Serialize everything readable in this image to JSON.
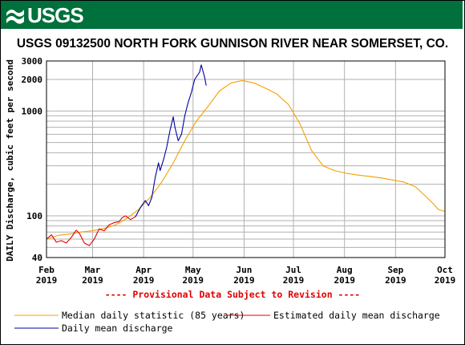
{
  "header": {
    "agency": "USGS"
  },
  "chart_data": {
    "type": "line",
    "title": "USGS 09132500 NORTH FORK GUNNISON RIVER NEAR SOMERSET, CO.",
    "ylabel": "DAILY Discharge, cubic feet per second",
    "xlabel": "",
    "yscale": "log",
    "ylim": [
      40,
      3000
    ],
    "ytick_labels": [
      "40",
      "100",
      "1000",
      "2000",
      "3000"
    ],
    "x_ticks": [
      {
        "date": "2019-02-01",
        "month": "Feb",
        "year": "2019"
      },
      {
        "date": "2019-03-01",
        "month": "Mar",
        "year": "2019"
      },
      {
        "date": "2019-04-01",
        "month": "Apr",
        "year": "2019"
      },
      {
        "date": "2019-05-01",
        "month": "May",
        "year": "2019"
      },
      {
        "date": "2019-06-01",
        "month": "Jun",
        "year": "2019"
      },
      {
        "date": "2019-07-01",
        "month": "Jul",
        "year": "2019"
      },
      {
        "date": "2019-08-01",
        "month": "Aug",
        "year": "2019"
      },
      {
        "date": "2019-09-01",
        "month": "Sep",
        "year": "2019"
      },
      {
        "date": "2019-10-01",
        "month": "Oct",
        "year": "2019"
      }
    ],
    "xlim": [
      "2019-02-01",
      "2019-10-01"
    ],
    "grid": true,
    "annotation": "---- Provisional Data Subject to Revision ----",
    "legend_position": "bottom",
    "colors": {
      "median": "#f5a000",
      "estimated": "#e00000",
      "daily": "#0000a0",
      "grid": "#b0b0b0",
      "banner": "#00703c"
    },
    "series": [
      {
        "name": "Median daily statistic (85 years)",
        "color": "#f5a000",
        "points": [
          [
            "2019-02-01",
            60
          ],
          [
            "2019-02-08",
            65
          ],
          [
            "2019-02-15",
            67
          ],
          [
            "2019-02-22",
            70
          ],
          [
            "2019-03-01",
            72
          ],
          [
            "2019-03-08",
            76
          ],
          [
            "2019-03-15",
            82
          ],
          [
            "2019-03-22",
            95
          ],
          [
            "2019-03-29",
            115
          ],
          [
            "2019-04-05",
            150
          ],
          [
            "2019-04-12",
            210
          ],
          [
            "2019-04-19",
            320
          ],
          [
            "2019-04-26",
            520
          ],
          [
            "2019-05-03",
            800
          ],
          [
            "2019-05-10",
            1100
          ],
          [
            "2019-05-17",
            1550
          ],
          [
            "2019-05-24",
            1850
          ],
          [
            "2019-05-31",
            1950
          ],
          [
            "2019-06-07",
            1850
          ],
          [
            "2019-06-14",
            1650
          ],
          [
            "2019-06-21",
            1450
          ],
          [
            "2019-06-28",
            1150
          ],
          [
            "2019-07-05",
            750
          ],
          [
            "2019-07-12",
            420
          ],
          [
            "2019-07-19",
            300
          ],
          [
            "2019-07-26",
            270
          ],
          [
            "2019-08-02",
            255
          ],
          [
            "2019-08-09",
            245
          ],
          [
            "2019-08-16",
            238
          ],
          [
            "2019-08-23",
            230
          ],
          [
            "2019-08-30",
            220
          ],
          [
            "2019-09-06",
            210
          ],
          [
            "2019-09-13",
            190
          ],
          [
            "2019-09-20",
            150
          ],
          [
            "2019-09-24",
            130
          ],
          [
            "2019-09-27",
            115
          ],
          [
            "2019-10-01",
            110
          ]
        ]
      },
      {
        "name": "Estimated daily mean discharge",
        "color": "#e00000",
        "points": [
          [
            "2019-02-01",
            60
          ],
          [
            "2019-02-04",
            66
          ],
          [
            "2019-02-07",
            56
          ],
          [
            "2019-02-10",
            58
          ],
          [
            "2019-02-13",
            55
          ],
          [
            "2019-02-16",
            62
          ],
          [
            "2019-02-19",
            73
          ],
          [
            "2019-02-21",
            68
          ],
          [
            "2019-02-24",
            55
          ],
          [
            "2019-02-27",
            52
          ],
          [
            "2019-03-02",
            60
          ],
          [
            "2019-03-05",
            75
          ],
          [
            "2019-03-08",
            72
          ],
          [
            "2019-03-11",
            82
          ],
          [
            "2019-03-14",
            86
          ],
          [
            "2019-03-17",
            88
          ],
          [
            "2019-03-19",
            96
          ],
          [
            "2019-03-21",
            100
          ],
          [
            "2019-03-24",
            92
          ],
          [
            "2019-03-27",
            98
          ]
        ]
      },
      {
        "name": "Daily mean discharge",
        "color": "#0000a0",
        "points": [
          [
            "2019-03-27",
            98
          ],
          [
            "2019-03-30",
            120
          ],
          [
            "2019-04-02",
            140
          ],
          [
            "2019-04-04",
            125
          ],
          [
            "2019-04-06",
            150
          ],
          [
            "2019-04-08",
            230
          ],
          [
            "2019-04-10",
            320
          ],
          [
            "2019-04-11",
            270
          ],
          [
            "2019-04-13",
            340
          ],
          [
            "2019-04-15",
            450
          ],
          [
            "2019-04-17",
            650
          ],
          [
            "2019-04-19",
            880
          ],
          [
            "2019-04-20",
            700
          ],
          [
            "2019-04-22",
            520
          ],
          [
            "2019-04-24",
            600
          ],
          [
            "2019-04-26",
            900
          ],
          [
            "2019-04-28",
            1200
          ],
          [
            "2019-04-30",
            1500
          ],
          [
            "2019-05-02",
            2000
          ],
          [
            "2019-05-05",
            2350
          ],
          [
            "2019-05-06",
            2750
          ],
          [
            "2019-05-08",
            2100
          ],
          [
            "2019-05-09",
            1750
          ]
        ]
      }
    ]
  }
}
